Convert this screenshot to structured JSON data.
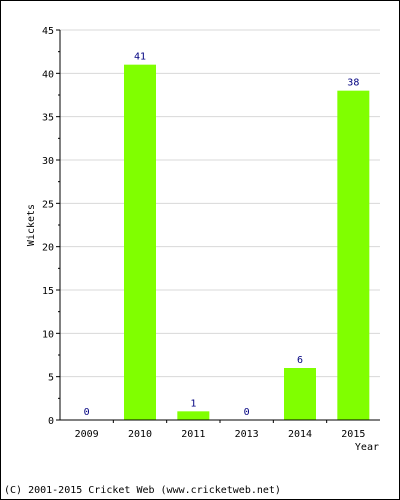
{
  "chart_data": {
    "type": "bar",
    "title": "",
    "xlabel": "Year",
    "ylabel": "Wickets",
    "categories": [
      "2009",
      "2010",
      "2011",
      "2013",
      "2014",
      "2015"
    ],
    "values": [
      0,
      41,
      1,
      0,
      6,
      38
    ],
    "data_labels": [
      "0",
      "41",
      "1",
      "0",
      "6",
      "38"
    ],
    "ylim": [
      0,
      45
    ],
    "yticks": [
      0,
      5,
      10,
      15,
      20,
      25,
      30,
      35,
      40,
      45
    ],
    "grid": true,
    "legend": "none",
    "bar_color": "#80ff00",
    "label_color": "#000080"
  },
  "footer": "(C) 2001-2015 Cricket Web (www.cricketweb.net)"
}
